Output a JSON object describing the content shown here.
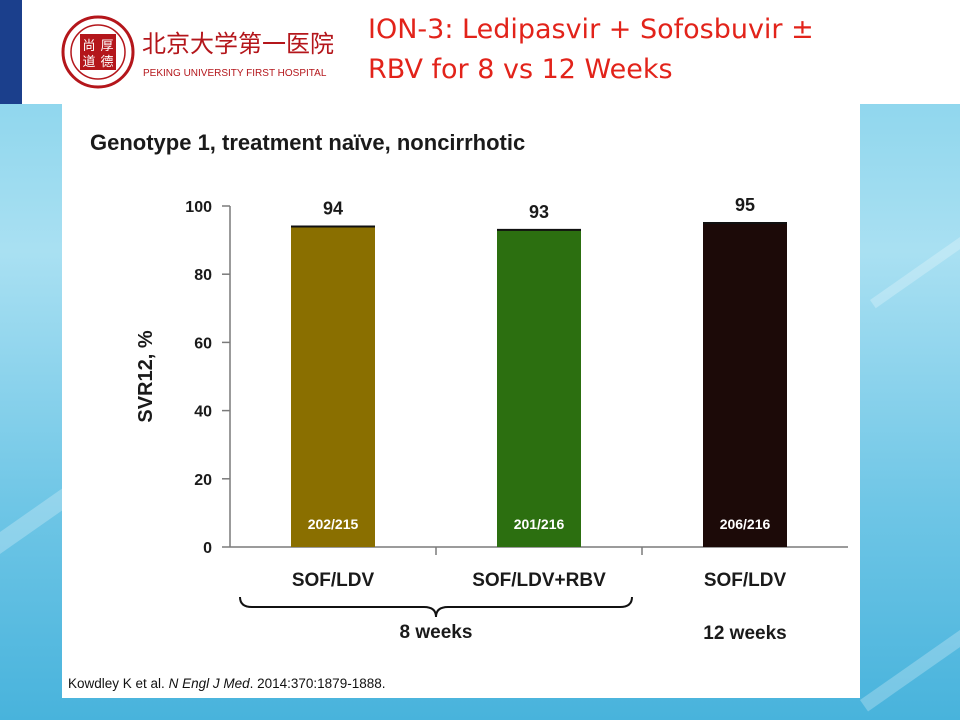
{
  "slide": {
    "title_line1": "ION-3: Ledipasvir + Sofosbuvir ±",
    "title_line2": "RBV for 8 vs 12 Weeks",
    "logo_text_cn": "北京大学第一医院",
    "logo_text_en": "PEKING UNIVERSITY FIRST HOSPITAL",
    "seal_chars": [
      "尚",
      "厚",
      "道",
      "德"
    ],
    "citation_authors": "Kowdley K et al. ",
    "citation_journal": "N Engl J Med",
    "citation_rest": ". 2014:370:1879-1888."
  },
  "colors": {
    "title": "#e2231a",
    "logo": "#b4161b",
    "bar_sof_ldv_8": "#8a6f00",
    "bar_sof_ldv_rbv_8": "#2c6f10",
    "bar_sof_ldv_12": "#1c0a08"
  },
  "chart_data": {
    "type": "bar",
    "title": "Genotype 1, treatment naïve, noncirrhotic",
    "xlabel": "",
    "ylabel": "SVR12, %",
    "ylim": [
      0,
      100
    ],
    "yticks": [
      0,
      20,
      40,
      60,
      80,
      100
    ],
    "grid": false,
    "categories": [
      "SOF/LDV",
      "SOF/LDV+RBV",
      "SOF/LDV"
    ],
    "values": [
      94,
      93,
      95
    ],
    "value_labels": [
      "94",
      "93",
      "95"
    ],
    "counts": [
      "202/215",
      "201/216",
      "206/216"
    ],
    "groups": [
      {
        "label": "8 weeks",
        "categories": [
          0,
          1
        ]
      },
      {
        "label": "12 weeks",
        "categories": [
          2
        ]
      }
    ]
  }
}
